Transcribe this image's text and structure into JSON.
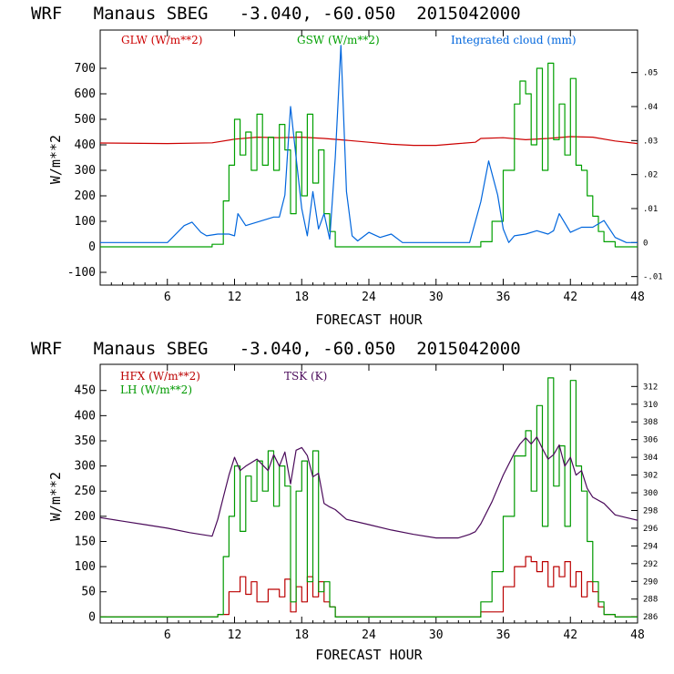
{
  "chart_data": [
    {
      "type": "line",
      "title": "WRF   Manaus SBEG   -3.040, -60.050  2015042000",
      "xlabel": "FORECAST HOUR",
      "ylabel": "W/m**2",
      "xlim": [
        0,
        48
      ],
      "ylim": [
        -150,
        850
      ],
      "y2lim": [
        -0.0125,
        0.0625
      ],
      "xticks": [
        "6",
        "12",
        "18",
        "24",
        "30",
        "36",
        "42",
        "48"
      ],
      "yticks": [
        "-100",
        "0",
        "100",
        "200",
        "300",
        "400",
        "500",
        "600",
        "700"
      ],
      "y2ticks": [
        "-.01",
        "0",
        ".01",
        ".02",
        ".03",
        ".04",
        ".05"
      ],
      "series": [
        {
          "name": "GLW (W/m**2)",
          "color": "#cc0000",
          "axis": "left",
          "x": [
            0,
            6,
            10,
            12,
            14,
            16,
            18,
            20,
            22,
            24,
            26,
            28,
            30,
            32,
            33.5,
            34,
            36,
            38,
            40,
            42,
            44,
            46,
            48
          ],
          "y": [
            407,
            405,
            408,
            422,
            430,
            428,
            430,
            425,
            418,
            410,
            402,
            398,
            398,
            405,
            410,
            425,
            428,
            420,
            425,
            432,
            430,
            415,
            405
          ]
        },
        {
          "name": "GSW (W/m**2)",
          "color": "#00a000",
          "axis": "left",
          "x": [
            0,
            9,
            10,
            11,
            11.5,
            12,
            12.5,
            13,
            13.5,
            14,
            14.5,
            15,
            15.5,
            16,
            16.5,
            17,
            17.5,
            18,
            18.5,
            19,
            19.5,
            20,
            20.5,
            21,
            22,
            33,
            34,
            35,
            36,
            37,
            37.5,
            38,
            38.5,
            39,
            39.5,
            40,
            40.5,
            41,
            41.5,
            42,
            42.5,
            43,
            43.5,
            44,
            44.5,
            45,
            46,
            48
          ],
          "y": [
            0,
            0,
            10,
            180,
            320,
            500,
            360,
            450,
            300,
            520,
            320,
            430,
            300,
            480,
            380,
            130,
            450,
            200,
            520,
            250,
            380,
            130,
            60,
            0,
            0,
            0,
            20,
            100,
            300,
            560,
            650,
            600,
            400,
            700,
            300,
            720,
            420,
            560,
            360,
            660,
            320,
            300,
            200,
            120,
            60,
            20,
            0,
            0
          ]
        },
        {
          "name": "Integrated cloud (mm)",
          "color": "#0066dd",
          "axis": "right",
          "x": [
            0,
            6,
            7.5,
            8.2,
            9,
            9.5,
            10.5,
            11.5,
            12,
            12.3,
            13,
            14,
            15,
            15.5,
            16,
            16.5,
            17,
            17.5,
            18,
            18.5,
            19,
            19.5,
            20,
            20.5,
            21,
            21.5,
            22,
            22.5,
            23,
            24,
            25,
            26,
            27,
            33,
            34,
            34.7,
            35.5,
            36,
            36.5,
            37,
            38,
            39,
            40,
            40.5,
            41,
            42,
            43,
            44,
            45,
            45.5,
            46,
            47,
            48
          ],
          "y": [
            0,
            0,
            0.005,
            0.006,
            0.003,
            0.002,
            0.0025,
            0.0025,
            0.002,
            0.0085,
            0.005,
            0.006,
            0.007,
            0.0075,
            0.0075,
            0.014,
            0.04,
            0.025,
            0.01,
            0.002,
            0.015,
            0.004,
            0.0085,
            0.001,
            0.025,
            0.058,
            0.015,
            0.002,
            0.0005,
            0.003,
            0.0015,
            0.0025,
            0,
            0,
            0.012,
            0.024,
            0.014,
            0.004,
            0,
            0.002,
            0.0025,
            0.0035,
            0.0025,
            0.0035,
            0.0085,
            0.003,
            0.0045,
            0.0045,
            0.0065,
            0.004,
            0.0015,
            0,
            0
          ]
        }
      ]
    },
    {
      "type": "line",
      "title": "WRF   Manaus SBEG   -3.040, -60.050  2015042000",
      "xlabel": "FORECAST HOUR",
      "ylabel": "W/m**2",
      "xlim": [
        0,
        48
      ],
      "ylim": [
        -12,
        502
      ],
      "y2lim": [
        285.3,
        314.5
      ],
      "xticks": [
        "6",
        "12",
        "18",
        "24",
        "30",
        "36",
        "42",
        "48"
      ],
      "yticks": [
        "0",
        "50",
        "100",
        "150",
        "200",
        "250",
        "300",
        "350",
        "400",
        "450"
      ],
      "y2ticks": [
        "286",
        "288",
        "290",
        "292",
        "294",
        "296",
        "298",
        "300",
        "302",
        "304",
        "306",
        "308",
        "310",
        "312"
      ],
      "series": [
        {
          "name": "HFX (W/m**2)",
          "color": "#bb0000",
          "axis": "left",
          "x": [
            0,
            10,
            10.5,
            11.5,
            12.5,
            13,
            13.5,
            14,
            15,
            16,
            16.5,
            17,
            17.5,
            18,
            18.5,
            19,
            19.5,
            20,
            20.5,
            21,
            22,
            33,
            34,
            36,
            37,
            38,
            38.5,
            39,
            39.5,
            40,
            40.5,
            41,
            41.5,
            42,
            42.5,
            43,
            43.5,
            44,
            44.5,
            45,
            46,
            48
          ],
          "y": [
            0,
            0,
            5,
            50,
            80,
            45,
            70,
            30,
            55,
            40,
            75,
            10,
            60,
            30,
            80,
            40,
            70,
            30,
            20,
            0,
            0,
            0,
            10,
            60,
            100,
            120,
            110,
            90,
            110,
            60,
            100,
            80,
            110,
            60,
            90,
            40,
            70,
            50,
            20,
            5,
            0,
            0
          ]
        },
        {
          "name": "LH (W/m**2)",
          "color": "#009900",
          "axis": "left",
          "x": [
            0,
            10,
            10.5,
            11,
            11.5,
            12,
            12.5,
            13,
            13.5,
            14,
            14.5,
            15,
            15.5,
            16,
            16.5,
            17,
            17.5,
            18,
            18.5,
            19,
            19.5,
            20,
            20.5,
            21,
            22,
            33,
            34,
            35,
            36,
            37,
            38,
            38.5,
            39,
            39.5,
            40,
            40.5,
            41,
            41.5,
            42,
            42.5,
            43,
            43.5,
            44,
            44.5,
            45,
            46,
            48
          ],
          "y": [
            0,
            0,
            5,
            120,
            200,
            300,
            170,
            280,
            230,
            310,
            250,
            330,
            220,
            300,
            260,
            30,
            250,
            310,
            70,
            330,
            50,
            70,
            20,
            0,
            0,
            0,
            30,
            90,
            200,
            320,
            370,
            250,
            420,
            180,
            475,
            260,
            340,
            180,
            470,
            300,
            250,
            150,
            70,
            30,
            5,
            0,
            0
          ]
        },
        {
          "name": "TSK (K)",
          "color": "#4a0a5a",
          "axis": "right",
          "x": [
            0,
            2,
            4,
            6,
            8,
            10,
            10.5,
            11,
            11.5,
            12,
            12.5,
            13,
            14,
            15,
            15.5,
            16,
            16.5,
            17,
            17.5,
            18,
            18.5,
            19,
            19.5,
            20,
            20.5,
            21,
            22,
            24,
            26,
            28,
            30,
            32,
            33,
            33.5,
            34,
            35,
            36,
            37,
            37.5,
            38,
            38.5,
            39,
            39.5,
            40,
            40.5,
            41,
            41.5,
            42,
            42.5,
            43,
            43.5,
            44,
            45,
            46,
            47,
            48
          ],
          "y": [
            297.2,
            296.8,
            296.4,
            296.0,
            295.5,
            295.1,
            297.0,
            299.5,
            302.0,
            304.0,
            302.5,
            303.0,
            303.8,
            302.5,
            304.3,
            303.0,
            304.6,
            301.0,
            304.8,
            305.1,
            304.2,
            301.8,
            302.2,
            298.8,
            298.4,
            298.1,
            297.0,
            296.4,
            295.8,
            295.3,
            294.9,
            294.9,
            295.3,
            295.6,
            296.5,
            299.0,
            302.0,
            304.5,
            305.5,
            306.2,
            305.5,
            306.3,
            305.0,
            303.8,
            304.3,
            305.4,
            303.0,
            304.0,
            302.0,
            302.5,
            300.5,
            299.5,
            298.8,
            297.5,
            297.2,
            296.9
          ]
        }
      ]
    }
  ]
}
